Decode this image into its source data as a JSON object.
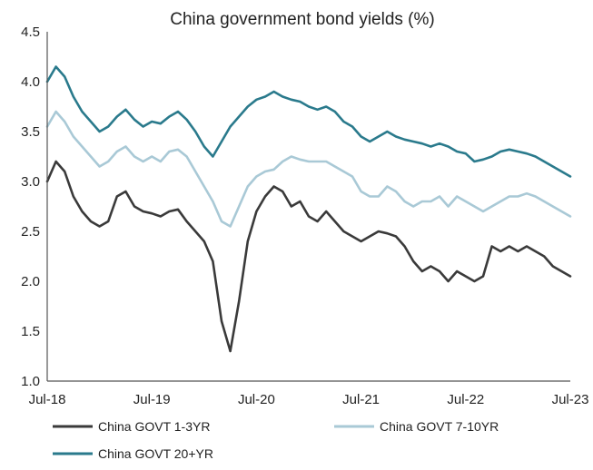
{
  "chart_data": {
    "type": "line",
    "title": "China government bond yields (%)",
    "xlabel": "",
    "ylabel": "",
    "ylim": [
      1.0,
      4.5
    ],
    "yticks": [
      "4.5",
      "4.0",
      "3.5",
      "3.0",
      "2.5",
      "2.0",
      "1.5",
      "1.0"
    ],
    "yticks_values": [
      4.5,
      4.0,
      3.5,
      3.0,
      2.5,
      2.0,
      1.5,
      1.0
    ],
    "xlim": [
      "2018-07",
      "2023-07"
    ],
    "xticks": [
      "Jul-18",
      "Jul-19",
      "Jul-20",
      "Jul-21",
      "Jul-22",
      "Jul-23"
    ],
    "xticks_values": [
      "2018-07",
      "2019-07",
      "2020-07",
      "2021-07",
      "2022-07",
      "2023-07"
    ],
    "grid": false,
    "legend_position": "bottom",
    "series": [
      {
        "name": "China GOVT 1-3YR",
        "color": "#3a3a3a",
        "x": [
          "2018-07",
          "2018-08",
          "2018-09",
          "2018-10",
          "2018-11",
          "2018-12",
          "2019-01",
          "2019-02",
          "2019-03",
          "2019-04",
          "2019-05",
          "2019-06",
          "2019-07",
          "2019-08",
          "2019-09",
          "2019-10",
          "2019-11",
          "2019-12",
          "2020-01",
          "2020-02",
          "2020-03",
          "2020-04",
          "2020-05",
          "2020-06",
          "2020-07",
          "2020-08",
          "2020-09",
          "2020-10",
          "2020-11",
          "2020-12",
          "2021-01",
          "2021-02",
          "2021-03",
          "2021-04",
          "2021-05",
          "2021-06",
          "2021-07",
          "2021-08",
          "2021-09",
          "2021-10",
          "2021-11",
          "2021-12",
          "2022-01",
          "2022-02",
          "2022-03",
          "2022-04",
          "2022-05",
          "2022-06",
          "2022-07",
          "2022-08",
          "2022-09",
          "2022-10",
          "2022-11",
          "2022-12",
          "2023-01",
          "2023-02",
          "2023-03",
          "2023-04",
          "2023-05",
          "2023-06",
          "2023-07"
        ],
        "values": [
          3.0,
          3.2,
          3.1,
          2.85,
          2.7,
          2.6,
          2.55,
          2.6,
          2.85,
          2.9,
          2.75,
          2.7,
          2.68,
          2.65,
          2.7,
          2.72,
          2.6,
          2.5,
          2.4,
          2.2,
          1.6,
          1.3,
          1.8,
          2.4,
          2.7,
          2.85,
          2.95,
          2.9,
          2.75,
          2.8,
          2.65,
          2.6,
          2.7,
          2.6,
          2.5,
          2.45,
          2.4,
          2.45,
          2.5,
          2.48,
          2.45,
          2.35,
          2.2,
          2.1,
          2.15,
          2.1,
          2.0,
          2.1,
          2.05,
          2.0,
          2.05,
          2.35,
          2.3,
          2.35,
          2.3,
          2.35,
          2.3,
          2.25,
          2.15,
          2.1,
          2.05
        ]
      },
      {
        "name": "China GOVT 7-10YR",
        "color": "#a9c9d6",
        "x": [
          "2018-07",
          "2018-08",
          "2018-09",
          "2018-10",
          "2018-11",
          "2018-12",
          "2019-01",
          "2019-02",
          "2019-03",
          "2019-04",
          "2019-05",
          "2019-06",
          "2019-07",
          "2019-08",
          "2019-09",
          "2019-10",
          "2019-11",
          "2019-12",
          "2020-01",
          "2020-02",
          "2020-03",
          "2020-04",
          "2020-05",
          "2020-06",
          "2020-07",
          "2020-08",
          "2020-09",
          "2020-10",
          "2020-11",
          "2020-12",
          "2021-01",
          "2021-02",
          "2021-03",
          "2021-04",
          "2021-05",
          "2021-06",
          "2021-07",
          "2021-08",
          "2021-09",
          "2021-10",
          "2021-11",
          "2021-12",
          "2022-01",
          "2022-02",
          "2022-03",
          "2022-04",
          "2022-05",
          "2022-06",
          "2022-07",
          "2022-08",
          "2022-09",
          "2022-10",
          "2022-11",
          "2022-12",
          "2023-01",
          "2023-02",
          "2023-03",
          "2023-04",
          "2023-05",
          "2023-06",
          "2023-07"
        ],
        "values": [
          3.55,
          3.7,
          3.6,
          3.45,
          3.35,
          3.25,
          3.15,
          3.2,
          3.3,
          3.35,
          3.25,
          3.2,
          3.25,
          3.2,
          3.3,
          3.32,
          3.25,
          3.1,
          2.95,
          2.8,
          2.6,
          2.55,
          2.75,
          2.95,
          3.05,
          3.1,
          3.12,
          3.2,
          3.25,
          3.22,
          3.2,
          3.2,
          3.2,
          3.15,
          3.1,
          3.05,
          2.9,
          2.85,
          2.85,
          2.95,
          2.9,
          2.8,
          2.75,
          2.8,
          2.8,
          2.85,
          2.75,
          2.85,
          2.8,
          2.75,
          2.7,
          2.75,
          2.8,
          2.85,
          2.85,
          2.88,
          2.85,
          2.8,
          2.75,
          2.7,
          2.65
        ]
      },
      {
        "name": "China GOVT 20+YR",
        "color": "#2a7a8c",
        "x": [
          "2018-07",
          "2018-08",
          "2018-09",
          "2018-10",
          "2018-11",
          "2018-12",
          "2019-01",
          "2019-02",
          "2019-03",
          "2019-04",
          "2019-05",
          "2019-06",
          "2019-07",
          "2019-08",
          "2019-09",
          "2019-10",
          "2019-11",
          "2019-12",
          "2020-01",
          "2020-02",
          "2020-03",
          "2020-04",
          "2020-05",
          "2020-06",
          "2020-07",
          "2020-08",
          "2020-09",
          "2020-10",
          "2020-11",
          "2020-12",
          "2021-01",
          "2021-02",
          "2021-03",
          "2021-04",
          "2021-05",
          "2021-06",
          "2021-07",
          "2021-08",
          "2021-09",
          "2021-10",
          "2021-11",
          "2021-12",
          "2022-01",
          "2022-02",
          "2022-03",
          "2022-04",
          "2022-05",
          "2022-06",
          "2022-07",
          "2022-08",
          "2022-09",
          "2022-10",
          "2022-11",
          "2022-12",
          "2023-01",
          "2023-02",
          "2023-03",
          "2023-04",
          "2023-05",
          "2023-06",
          "2023-07"
        ],
        "values": [
          4.0,
          4.15,
          4.05,
          3.85,
          3.7,
          3.6,
          3.5,
          3.55,
          3.65,
          3.72,
          3.62,
          3.55,
          3.6,
          3.58,
          3.65,
          3.7,
          3.62,
          3.5,
          3.35,
          3.25,
          3.4,
          3.55,
          3.65,
          3.75,
          3.82,
          3.85,
          3.9,
          3.85,
          3.82,
          3.8,
          3.75,
          3.72,
          3.75,
          3.7,
          3.6,
          3.55,
          3.45,
          3.4,
          3.45,
          3.5,
          3.45,
          3.42,
          3.4,
          3.38,
          3.35,
          3.38,
          3.35,
          3.3,
          3.28,
          3.2,
          3.22,
          3.25,
          3.3,
          3.32,
          3.3,
          3.28,
          3.25,
          3.2,
          3.15,
          3.1,
          3.05
        ]
      }
    ]
  }
}
